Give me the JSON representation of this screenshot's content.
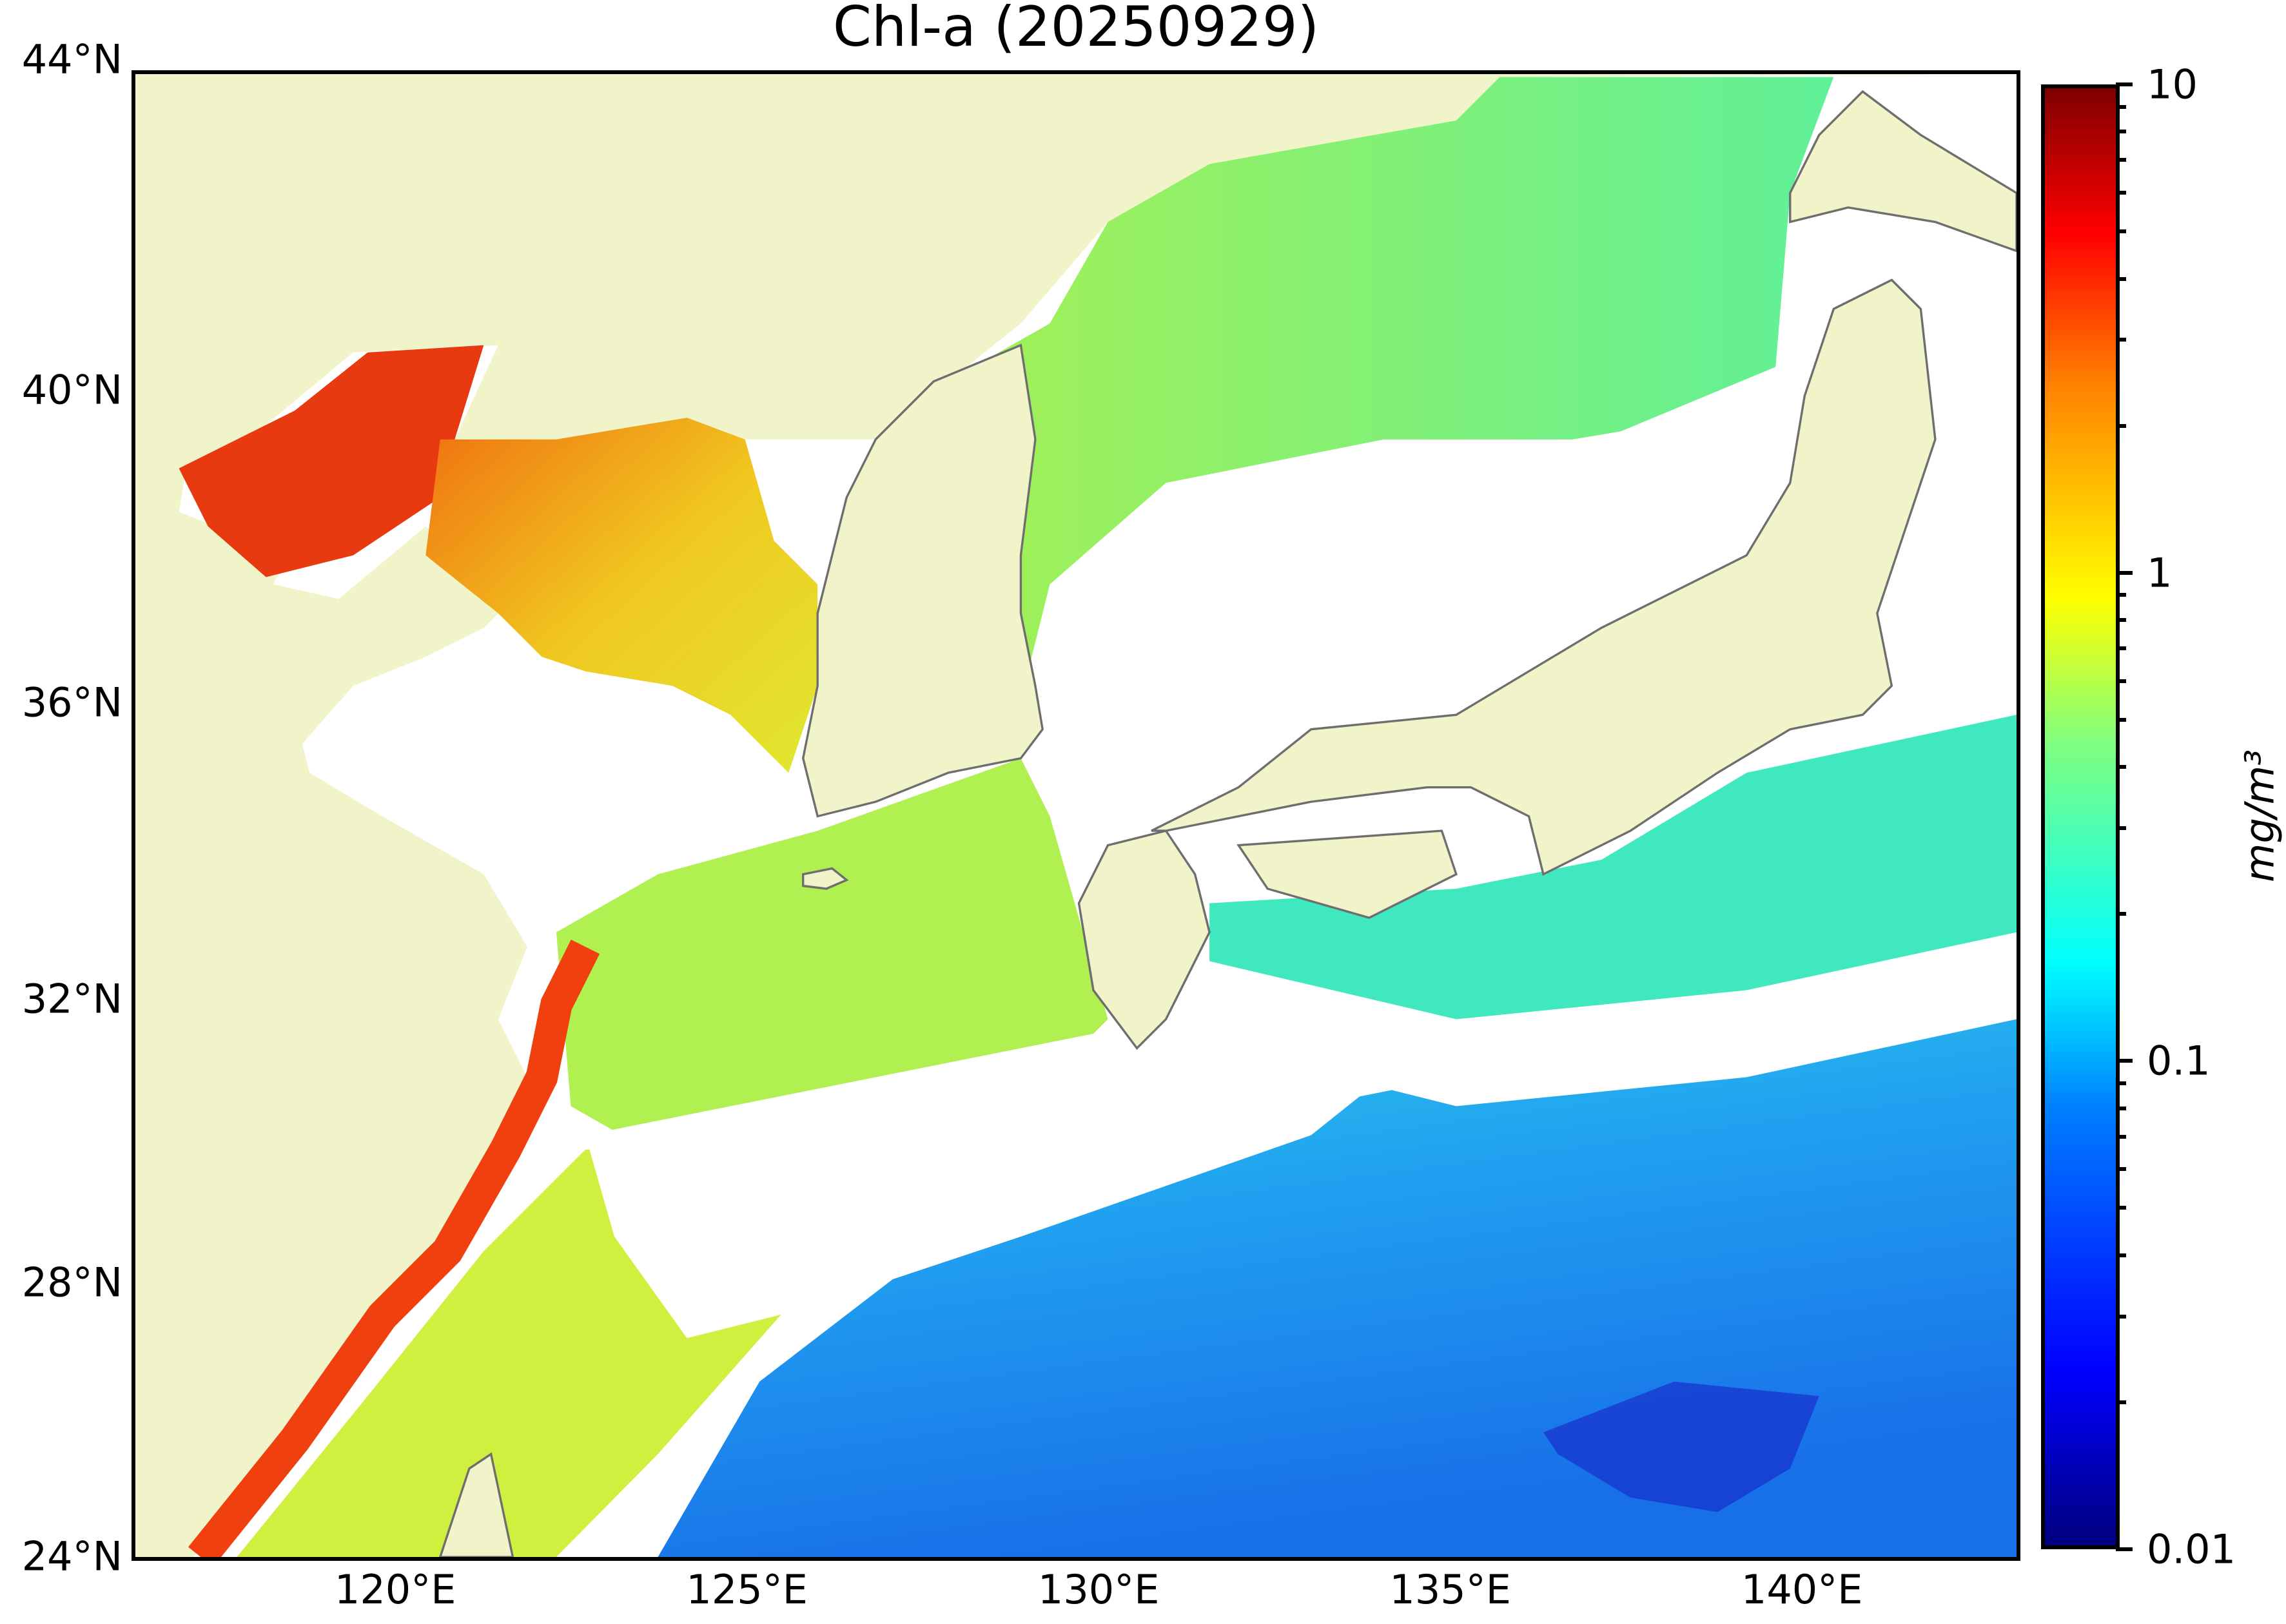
{
  "chart_data": {
    "type": "heatmap",
    "title": "Chl-a (20250929)",
    "projection": "mercator map",
    "xlim": [
      116.25,
      143.1
    ],
    "ylim": [
      24,
      44.5
    ],
    "x_ticks": [
      {
        "value": 120,
        "label": "120°E"
      },
      {
        "value": 125,
        "label": "125°E"
      },
      {
        "value": 130,
        "label": "130°E"
      },
      {
        "value": 135,
        "label": "135°E"
      },
      {
        "value": 140,
        "label": "140°E"
      }
    ],
    "y_ticks": [
      {
        "value": 24,
        "label": "24°N"
      },
      {
        "value": 28,
        "label": "28°N"
      },
      {
        "value": 32,
        "label": "32°N"
      },
      {
        "value": 36,
        "label": "36°N"
      },
      {
        "value": 40,
        "label": "40°N"
      },
      {
        "value": 44,
        "label": "44°N"
      }
    ],
    "colorbar": {
      "label": "mg/m³",
      "scale": "log",
      "range": [
        0.01,
        10
      ],
      "colormap": "jet",
      "ticks": [
        {
          "value": 0.01,
          "label": "0.01"
        },
        {
          "value": 0.1,
          "label": "0.1"
        },
        {
          "value": 1,
          "label": "1"
        },
        {
          "value": 10,
          "label": "10"
        }
      ]
    },
    "colors": {
      "land": "#f0f4c8",
      "no_data": "#ffffff",
      "coastline": "#6e6e6e"
    },
    "grid": false
  }
}
